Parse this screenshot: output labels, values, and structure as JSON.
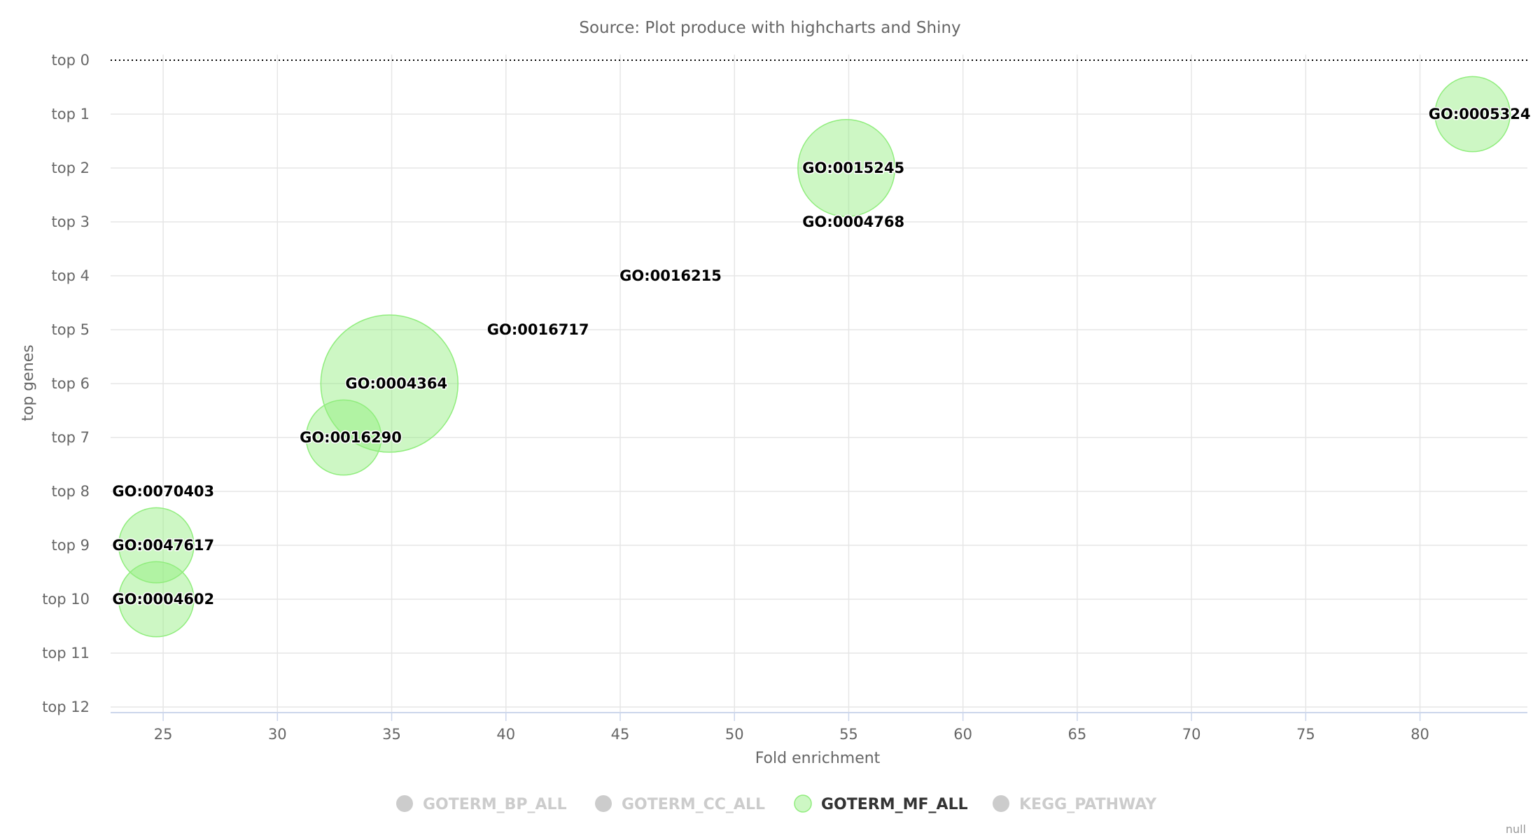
{
  "chart_data": {
    "type": "bubble",
    "subtitle": "Source: Plot produce with highcharts and Shiny",
    "xlabel": "Fold enrichment",
    "ylabel": "top genes",
    "xlim": [
      22.7,
      84.7
    ],
    "x_ticks": [
      25,
      30,
      35,
      40,
      45,
      50,
      55,
      60,
      65,
      70,
      75,
      80
    ],
    "y_categories": [
      "top 0",
      "top 1",
      "top 2",
      "top 3",
      "top 4",
      "top 5",
      "top 6",
      "top 7",
      "top 8",
      "top 9",
      "top 10",
      "top 11",
      "top 12"
    ],
    "grid": true,
    "legend_position": "bottom-center",
    "legend": [
      {
        "name": "GOTERM_BP_ALL",
        "visible": false
      },
      {
        "name": "GOTERM_CC_ALL",
        "visible": false
      },
      {
        "name": "GOTERM_MF_ALL",
        "visible": true
      },
      {
        "name": "KEGG_PATHWAY",
        "visible": false
      }
    ],
    "series": [
      {
        "name": "GOTERM_MF_ALL",
        "color": "#90ed7d",
        "points": [
          {
            "label": "GO:0005324",
            "x": 82.3,
            "y": 1,
            "z": 3
          },
          {
            "label": "GO:0015245",
            "x": 54.9,
            "y": 2,
            "z": 5
          },
          {
            "label": "GO:0004768",
            "x": 54.9,
            "y": 3,
            "z": 0
          },
          {
            "label": "GO:0016215",
            "x": 46.9,
            "y": 4,
            "z": 0
          },
          {
            "label": "GO:0016717",
            "x": 41.1,
            "y": 5,
            "z": 0
          },
          {
            "label": "GO:0004364",
            "x": 34.9,
            "y": 6,
            "z": 10
          },
          {
            "label": "GO:0016290",
            "x": 32.9,
            "y": 7,
            "z": 3
          },
          {
            "label": "GO:0070403",
            "x": 24.7,
            "y": 8,
            "z": 0
          },
          {
            "label": "GO:0047617",
            "x": 24.7,
            "y": 9,
            "z": 3
          },
          {
            "label": "GO:0004602",
            "x": 24.7,
            "y": 10,
            "z": 3
          }
        ]
      }
    ],
    "credit": "null"
  },
  "colors": {
    "grid": "#e6e6e6",
    "axis_line": "#ccd6eb",
    "legend_hidden": "#cccccc",
    "legend_active_text": "#333333"
  }
}
